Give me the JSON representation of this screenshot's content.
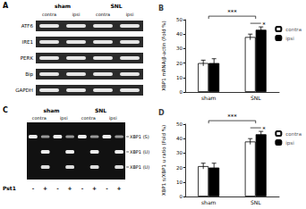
{
  "gel_A": {
    "title": "A",
    "groups": [
      "sham",
      "SNL"
    ],
    "lanes": [
      "contra",
      "ipsi",
      "contra",
      "ipsi"
    ],
    "rows": [
      "ATF6",
      "IRE1",
      "PERK",
      "Bip",
      "GAPDH"
    ]
  },
  "gel_C": {
    "title": "C",
    "groups": [
      "sham",
      "SNL"
    ],
    "lanes": [
      "contra",
      "ipsi",
      "contra",
      "ipsi"
    ],
    "bands": [
      "XBP1 (S)",
      "XBP1 (U)",
      "XBP1 (U)"
    ],
    "enzyme": "Pst1",
    "treatment": [
      "-",
      "+",
      "-",
      "+",
      "-",
      "+",
      "-",
      "+"
    ]
  },
  "chart_data": [
    {
      "type": "bar",
      "title": "B",
      "y_label": "XBP1 mRNA/β-actin (Fold %)",
      "categories": [
        "sham",
        "SNL"
      ],
      "series": [
        {
          "name": "contra",
          "color": "#ffffff",
          "values": [
            20,
            38
          ],
          "errors": [
            2,
            2
          ]
        },
        {
          "name": "ipsi",
          "color": "#000000",
          "values": [
            20,
            43
          ],
          "errors": [
            3,
            2
          ]
        }
      ],
      "ylim": [
        0,
        50
      ],
      "yticks": [
        0,
        10,
        20,
        30,
        40,
        50
      ],
      "legend": "right",
      "annotations": [
        "***",
        "*"
      ]
    },
    {
      "type": "bar",
      "title": "D",
      "y_label": "XBP1 s/XBP1 u ratio (Fold %)",
      "categories": [
        "sham",
        "SNL"
      ],
      "series": [
        {
          "name": "contra",
          "color": "#ffffff",
          "values": [
            21,
            38
          ],
          "errors": [
            2,
            2
          ]
        },
        {
          "name": "ipsi",
          "color": "#000000",
          "values": [
            20,
            43
          ],
          "errors": [
            3,
            2
          ]
        }
      ],
      "ylim": [
        0,
        50
      ],
      "yticks": [
        0,
        10,
        20,
        30,
        40,
        50
      ],
      "legend": "right",
      "annotations": [
        "***",
        "*"
      ]
    }
  ]
}
